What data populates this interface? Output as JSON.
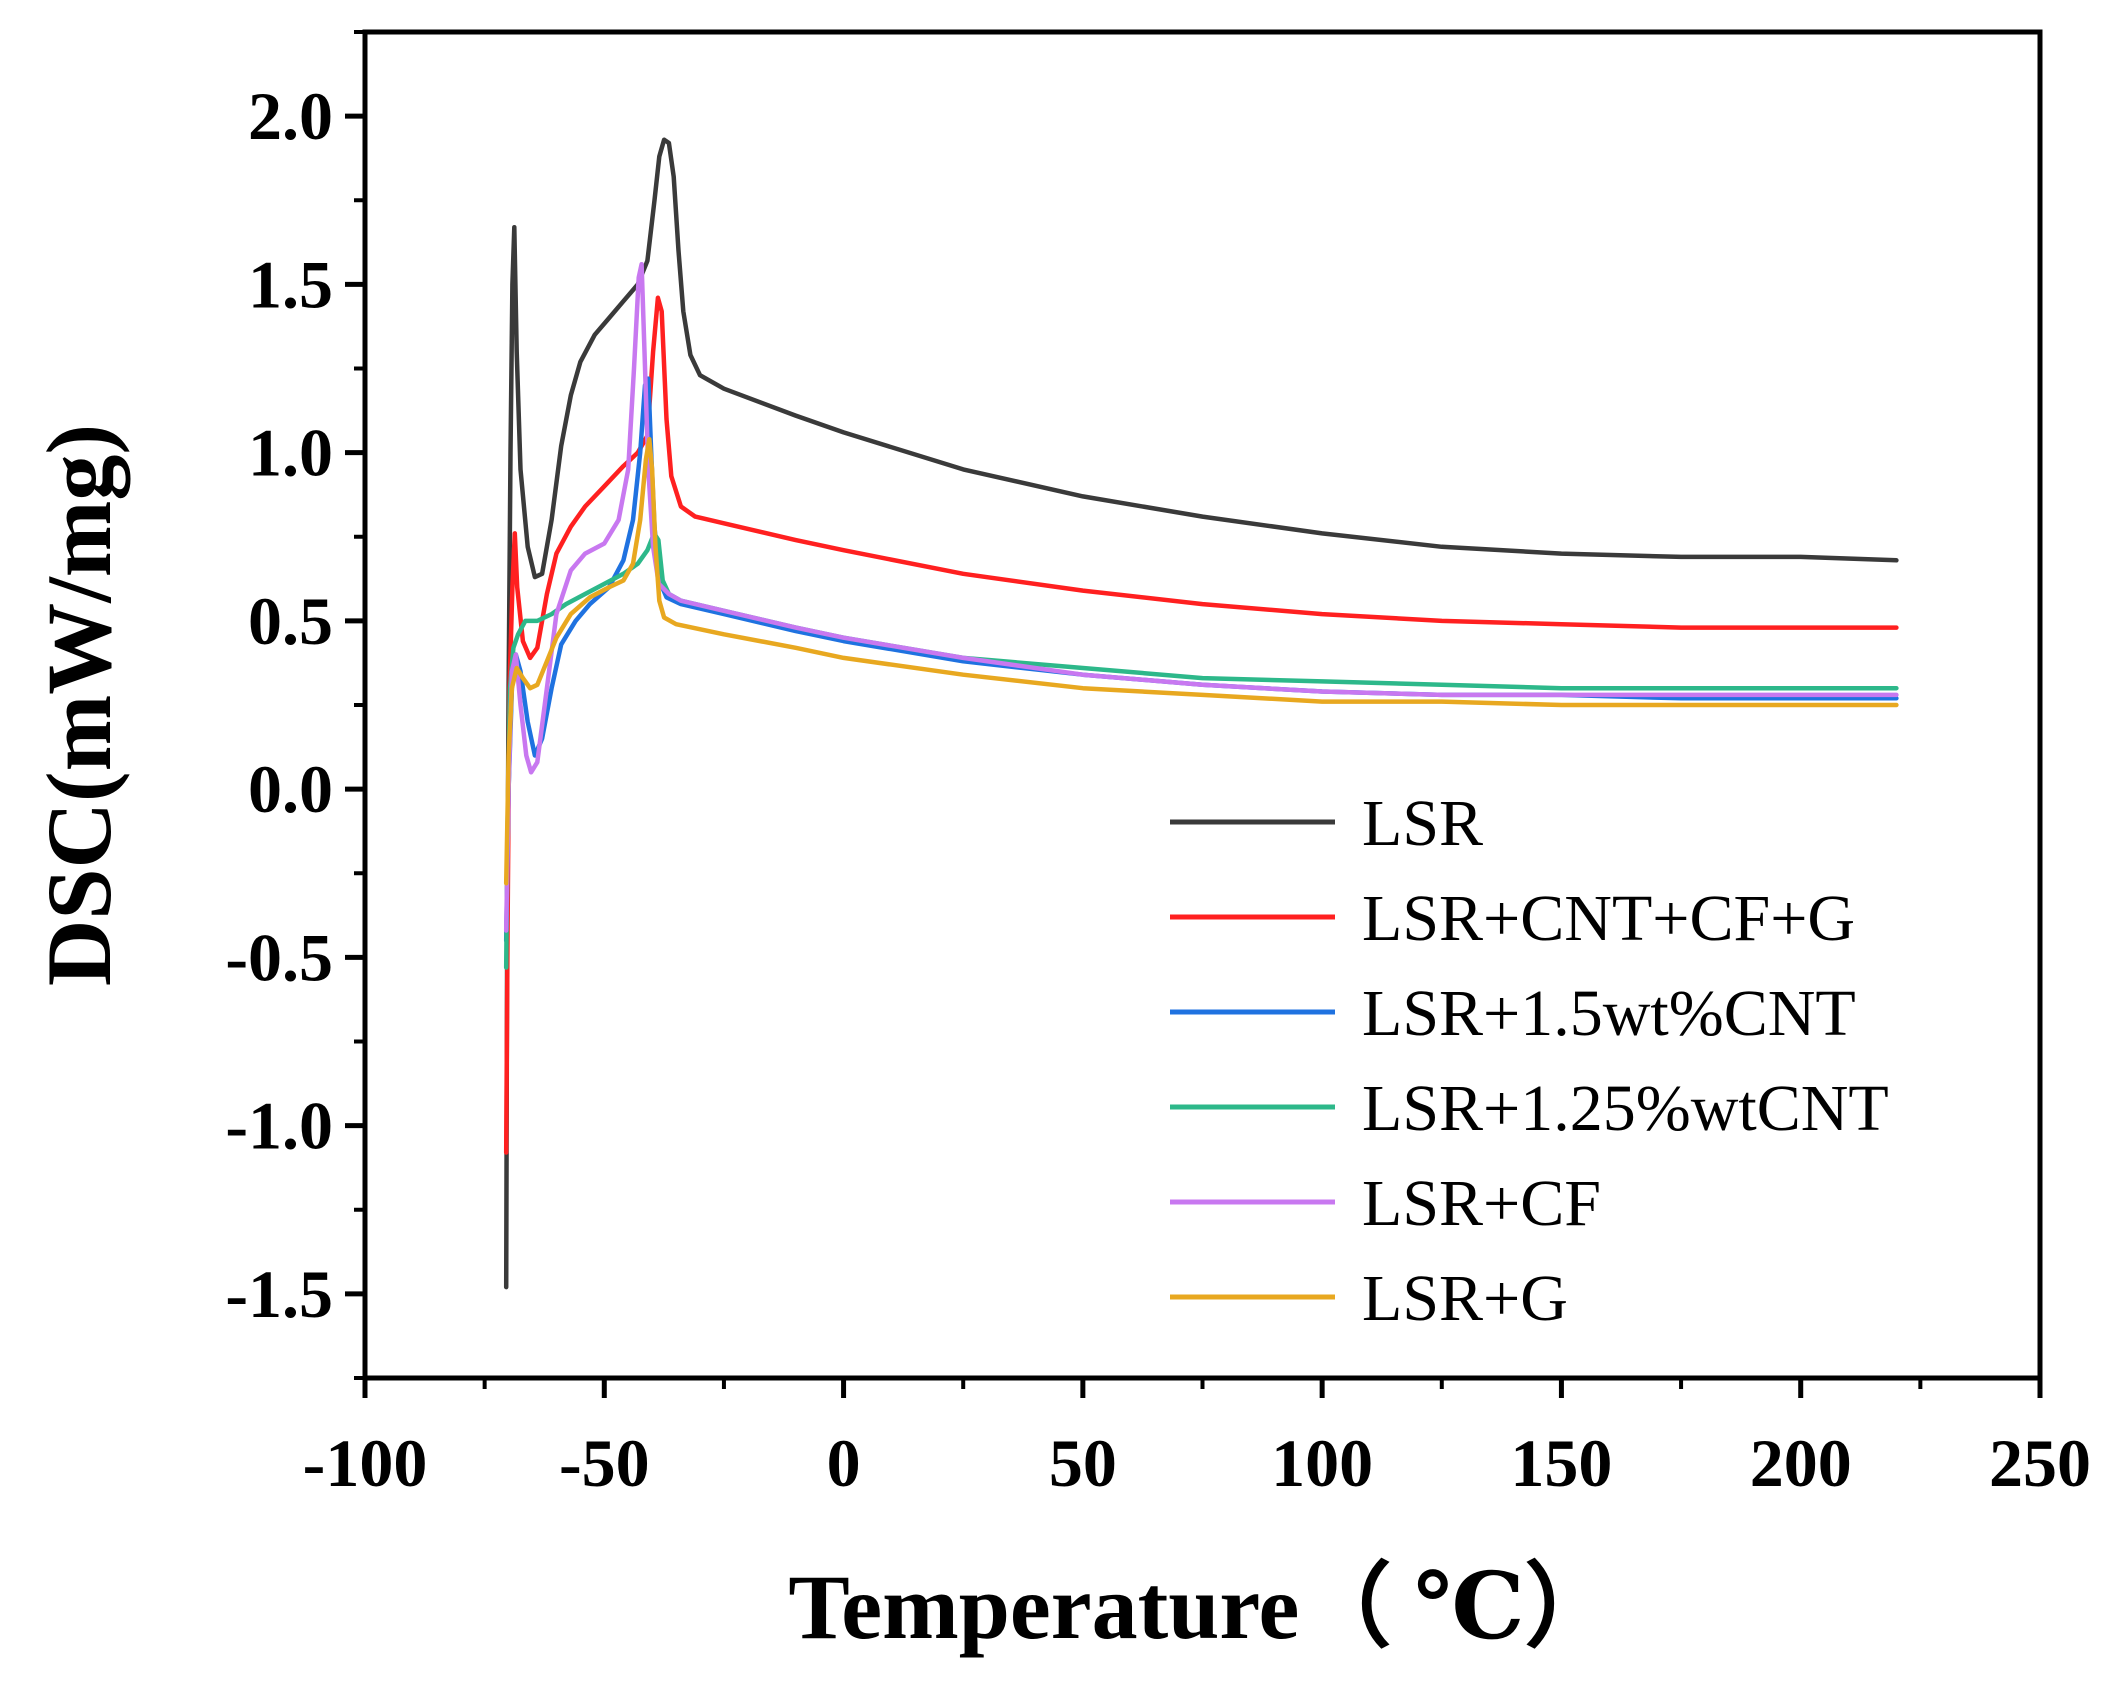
{
  "chart_data": {
    "type": "line",
    "title": "",
    "xlabel": "Temperature（ ℃）",
    "ylabel": "DSC(mW/mg)",
    "xlim": [
      -100,
      250
    ],
    "ylim": [
      -1.75,
      2.25
    ],
    "xticks": [
      -100,
      -50,
      0,
      50,
      100,
      150,
      200,
      250
    ],
    "xtick_labels": [
      "-100",
      "-50",
      "0",
      "50",
      "100",
      "150",
      "200",
      "250"
    ],
    "yticks": [
      -1.5,
      -1.0,
      -0.5,
      0.0,
      0.5,
      1.0,
      1.5,
      2.0
    ],
    "ytick_labels": [
      "-1.5",
      "-1.0",
      "-0.5",
      "0.0",
      "0.5",
      "1.0",
      "1.5",
      "2.0"
    ],
    "grid": false,
    "legend_position": "bottom-right",
    "series": [
      {
        "name": "LSR",
        "color": "#3a3a3a",
        "points": [
          [
            -70.5,
            -1.48
          ],
          [
            -70.3,
            -0.5
          ],
          [
            -70,
            0.3
          ],
          [
            -69.6,
            1.0
          ],
          [
            -69.2,
            1.5
          ],
          [
            -68.8,
            1.67
          ],
          [
            -68.3,
            1.3
          ],
          [
            -67.5,
            0.95
          ],
          [
            -66,
            0.72
          ],
          [
            -64.5,
            0.63
          ],
          [
            -63,
            0.64
          ],
          [
            -61,
            0.8
          ],
          [
            -59,
            1.02
          ],
          [
            -57,
            1.17
          ],
          [
            -55,
            1.27
          ],
          [
            -52,
            1.35
          ],
          [
            -49,
            1.4
          ],
          [
            -46,
            1.45
          ],
          [
            -43,
            1.5
          ],
          [
            -41,
            1.57
          ],
          [
            -39.5,
            1.75
          ],
          [
            -38.5,
            1.88
          ],
          [
            -37.5,
            1.93
          ],
          [
            -36.5,
            1.92
          ],
          [
            -35.5,
            1.82
          ],
          [
            -34.5,
            1.6
          ],
          [
            -33.5,
            1.42
          ],
          [
            -32,
            1.29
          ],
          [
            -30,
            1.23
          ],
          [
            -25,
            1.19
          ],
          [
            -10,
            1.11
          ],
          [
            0,
            1.06
          ],
          [
            25,
            0.95
          ],
          [
            50,
            0.87
          ],
          [
            75,
            0.81
          ],
          [
            100,
            0.76
          ],
          [
            125,
            0.72
          ],
          [
            150,
            0.7
          ],
          [
            175,
            0.69
          ],
          [
            200,
            0.69
          ],
          [
            220,
            0.68
          ]
        ]
      },
      {
        "name": "LSR+CNT+CF+G",
        "color": "#ff2020",
        "points": [
          [
            -70.5,
            -1.08
          ],
          [
            -70.2,
            -0.4
          ],
          [
            -69.8,
            0.3
          ],
          [
            -69.2,
            0.6
          ],
          [
            -68.7,
            0.76
          ],
          [
            -68.2,
            0.6
          ],
          [
            -67,
            0.44
          ],
          [
            -65.5,
            0.39
          ],
          [
            -64,
            0.42
          ],
          [
            -62,
            0.58
          ],
          [
            -60,
            0.7
          ],
          [
            -57,
            0.78
          ],
          [
            -54,
            0.84
          ],
          [
            -50,
            0.9
          ],
          [
            -46,
            0.96
          ],
          [
            -43,
            1.0
          ],
          [
            -41,
            1.05
          ],
          [
            -39.8,
            1.3
          ],
          [
            -38.8,
            1.46
          ],
          [
            -38,
            1.42
          ],
          [
            -37,
            1.1
          ],
          [
            -36,
            0.93
          ],
          [
            -34,
            0.84
          ],
          [
            -31,
            0.81
          ],
          [
            -25,
            0.79
          ],
          [
            -10,
            0.74
          ],
          [
            0,
            0.71
          ],
          [
            25,
            0.64
          ],
          [
            50,
            0.59
          ],
          [
            75,
            0.55
          ],
          [
            100,
            0.52
          ],
          [
            125,
            0.5
          ],
          [
            150,
            0.49
          ],
          [
            175,
            0.48
          ],
          [
            200,
            0.48
          ],
          [
            220,
            0.48
          ]
        ]
      },
      {
        "name": "LSR+1.5wt%CNT",
        "color": "#1f72e0",
        "points": [
          [
            -70.5,
            -0.45
          ],
          [
            -70,
            0.0
          ],
          [
            -69.3,
            0.3
          ],
          [
            -68.5,
            0.4
          ],
          [
            -67.5,
            0.35
          ],
          [
            -66,
            0.2
          ],
          [
            -64.5,
            0.1
          ],
          [
            -63,
            0.15
          ],
          [
            -61,
            0.3
          ],
          [
            -59,
            0.43
          ],
          [
            -56,
            0.5
          ],
          [
            -53,
            0.55
          ],
          [
            -49,
            0.6
          ],
          [
            -46,
            0.68
          ],
          [
            -44,
            0.8
          ],
          [
            -42.5,
            1.0
          ],
          [
            -41.5,
            1.2
          ],
          [
            -40.8,
            1.22
          ],
          [
            -40.2,
            1.0
          ],
          [
            -39.5,
            0.78
          ],
          [
            -38.5,
            0.62
          ],
          [
            -37,
            0.57
          ],
          [
            -34,
            0.55
          ],
          [
            -25,
            0.52
          ],
          [
            -10,
            0.47
          ],
          [
            0,
            0.44
          ],
          [
            25,
            0.38
          ],
          [
            50,
            0.34
          ],
          [
            75,
            0.31
          ],
          [
            100,
            0.29
          ],
          [
            125,
            0.28
          ],
          [
            150,
            0.28
          ],
          [
            175,
            0.27
          ],
          [
            200,
            0.27
          ],
          [
            220,
            0.27
          ]
        ]
      },
      {
        "name": "LSR+1.25%wtCNT",
        "color": "#2db88a",
        "points": [
          [
            -70.5,
            -0.53
          ],
          [
            -70.2,
            -0.1
          ],
          [
            -69.7,
            0.3
          ],
          [
            -69,
            0.42
          ],
          [
            -68,
            0.46
          ],
          [
            -66.5,
            0.5
          ],
          [
            -64,
            0.5
          ],
          [
            -61,
            0.52
          ],
          [
            -58,
            0.55
          ],
          [
            -54,
            0.58
          ],
          [
            -50,
            0.61
          ],
          [
            -46,
            0.64
          ],
          [
            -43,
            0.67
          ],
          [
            -41,
            0.71
          ],
          [
            -39.6,
            0.76
          ],
          [
            -38.7,
            0.74
          ],
          [
            -37.8,
            0.62
          ],
          [
            -36.5,
            0.58
          ],
          [
            -34,
            0.56
          ],
          [
            -25,
            0.53
          ],
          [
            -10,
            0.48
          ],
          [
            0,
            0.45
          ],
          [
            25,
            0.39
          ],
          [
            50,
            0.36
          ],
          [
            75,
            0.33
          ],
          [
            100,
            0.32
          ],
          [
            125,
            0.31
          ],
          [
            150,
            0.3
          ],
          [
            175,
            0.3
          ],
          [
            200,
            0.3
          ],
          [
            220,
            0.3
          ]
        ]
      },
      {
        "name": "LSR+CF",
        "color": "#c878f0",
        "points": [
          [
            -70.5,
            -0.42
          ],
          [
            -70,
            0.0
          ],
          [
            -69.3,
            0.35
          ],
          [
            -68.5,
            0.4
          ],
          [
            -67.5,
            0.25
          ],
          [
            -66.3,
            0.1
          ],
          [
            -65.3,
            0.05
          ],
          [
            -64,
            0.08
          ],
          [
            -62,
            0.3
          ],
          [
            -60,
            0.52
          ],
          [
            -57,
            0.65
          ],
          [
            -54,
            0.7
          ],
          [
            -50,
            0.73
          ],
          [
            -47,
            0.8
          ],
          [
            -45,
            0.95
          ],
          [
            -43.8,
            1.25
          ],
          [
            -42.8,
            1.52
          ],
          [
            -42.2,
            1.56
          ],
          [
            -41.6,
            1.3
          ],
          [
            -40.8,
            0.95
          ],
          [
            -39.8,
            0.72
          ],
          [
            -38.6,
            0.61
          ],
          [
            -36.5,
            0.58
          ],
          [
            -34,
            0.56
          ],
          [
            -25,
            0.53
          ],
          [
            -10,
            0.48
          ],
          [
            0,
            0.45
          ],
          [
            25,
            0.39
          ],
          [
            50,
            0.34
          ],
          [
            75,
            0.31
          ],
          [
            100,
            0.29
          ],
          [
            125,
            0.28
          ],
          [
            150,
            0.28
          ],
          [
            175,
            0.28
          ],
          [
            200,
            0.28
          ],
          [
            220,
            0.28
          ]
        ]
      },
      {
        "name": "LSR+G",
        "color": "#e8a820",
        "points": [
          [
            -70.5,
            -0.28
          ],
          [
            -70,
            0.1
          ],
          [
            -69.3,
            0.3
          ],
          [
            -68.3,
            0.36
          ],
          [
            -67,
            0.33
          ],
          [
            -65.5,
            0.3
          ],
          [
            -64,
            0.31
          ],
          [
            -62,
            0.38
          ],
          [
            -60,
            0.45
          ],
          [
            -57,
            0.52
          ],
          [
            -53,
            0.57
          ],
          [
            -49,
            0.6
          ],
          [
            -46,
            0.62
          ],
          [
            -44,
            0.67
          ],
          [
            -42.5,
            0.8
          ],
          [
            -41.3,
            0.98
          ],
          [
            -40.6,
            1.04
          ],
          [
            -40,
            0.95
          ],
          [
            -39.3,
            0.72
          ],
          [
            -38.5,
            0.56
          ],
          [
            -37.5,
            0.51
          ],
          [
            -35,
            0.49
          ],
          [
            -25,
            0.46
          ],
          [
            -10,
            0.42
          ],
          [
            0,
            0.39
          ],
          [
            25,
            0.34
          ],
          [
            50,
            0.3
          ],
          [
            75,
            0.28
          ],
          [
            100,
            0.26
          ],
          [
            125,
            0.26
          ],
          [
            150,
            0.25
          ],
          [
            175,
            0.25
          ],
          [
            200,
            0.25
          ],
          [
            220,
            0.25
          ]
        ]
      }
    ]
  }
}
